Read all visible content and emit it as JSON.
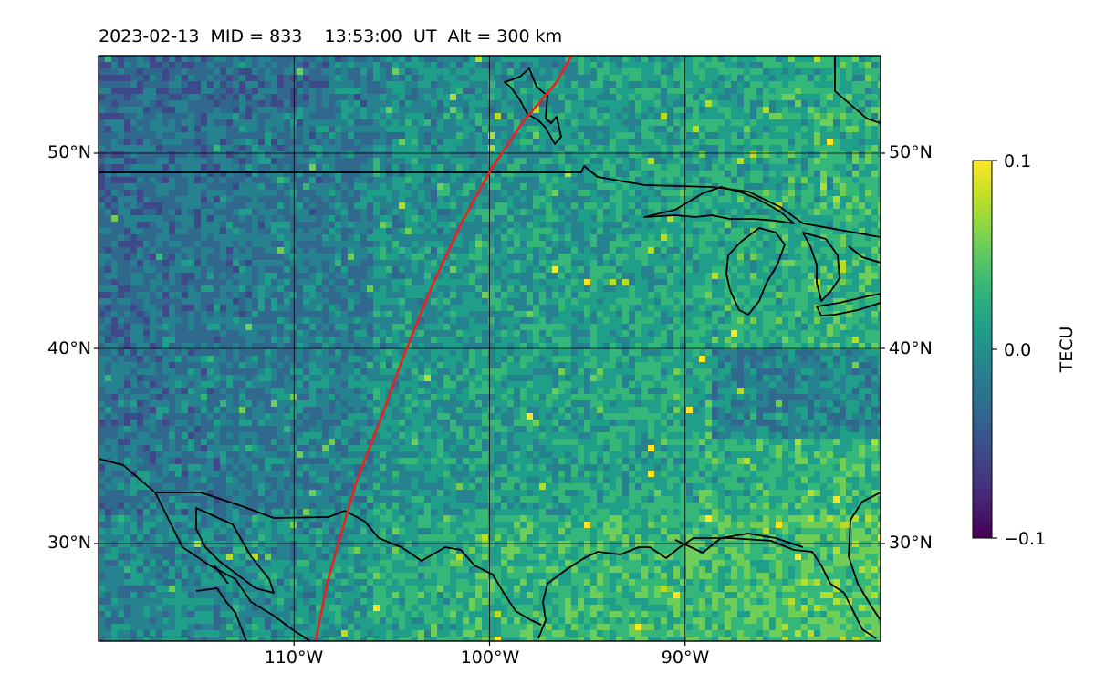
{
  "title": "2023-02-13  MID = 833    13:53:00  UT  Alt = 300 km",
  "map": {
    "type": "heatmap",
    "lon_range": [
      -120,
      -80
    ],
    "lat_range": [
      25,
      55
    ],
    "gridlines": {
      "lon": [
        -110,
        -100,
        -90
      ],
      "lat": [
        30,
        40,
        50
      ]
    },
    "lon_tick_labels": [
      "110°W",
      "100°W",
      "90°W"
    ],
    "lat_tick_labels": [
      "30°N",
      "40°N",
      "50°N"
    ],
    "track_color": "#e8231f",
    "coastline_color": "#000000",
    "track": [
      [
        -108.9,
        25
      ],
      [
        -108.3,
        28
      ],
      [
        -107.6,
        30.5
      ],
      [
        -106.8,
        33.2
      ],
      [
        -105.6,
        36.3
      ],
      [
        -104.4,
        39.6
      ],
      [
        -102.9,
        43.3
      ],
      [
        -101.4,
        46.5
      ],
      [
        -99.9,
        49.2
      ],
      [
        -98.3,
        51.6
      ],
      [
        -96.6,
        53.6
      ],
      [
        -95.8,
        55
      ]
    ]
  },
  "colorbar": {
    "label": "TECU",
    "ticks": [
      "0.1",
      "0.0",
      "−0.1"
    ],
    "range": [
      -0.1,
      0.1
    ],
    "colormap": "viridis",
    "colors": [
      "#440154",
      "#482878",
      "#3e4989",
      "#31688e",
      "#26828e",
      "#1f9e89",
      "#35b779",
      "#6ece58",
      "#b5de2b",
      "#fde725"
    ]
  }
}
